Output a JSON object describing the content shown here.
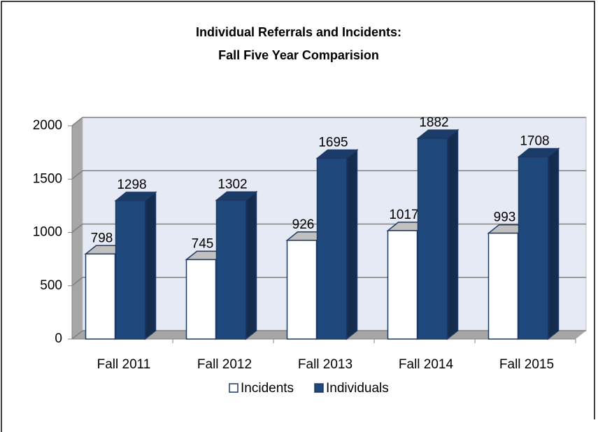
{
  "chart_data": {
    "type": "bar3d",
    "title": [
      "Individual Referrals and Incidents:",
      "Fall Five Year Comparision"
    ],
    "categories": [
      "Fall 2011",
      "Fall 2012",
      "Fall 2013",
      "Fall 2014",
      "Fall 2015"
    ],
    "series": [
      {
        "name": "Incidents",
        "color": "#ffffff",
        "values": [
          798,
          745,
          926,
          1017,
          993
        ]
      },
      {
        "name": "Individuals",
        "color": "#1f497d",
        "values": [
          1298,
          1302,
          1695,
          1882,
          1708
        ]
      }
    ],
    "ylim": [
      0,
      2000
    ],
    "yticks": [
      0,
      500,
      1000,
      1500,
      2000
    ],
    "grid": true,
    "legend": "bottom"
  }
}
